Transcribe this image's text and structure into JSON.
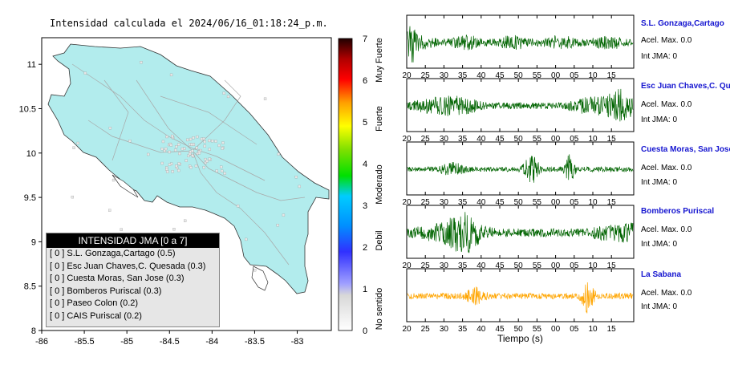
{
  "map": {
    "title": "Intensidad calculada el 2024/06/16_01:18:24_p.m.",
    "xticks": [
      "-86",
      "-85.5",
      "-85",
      "-84.5",
      "-84",
      "-83.5",
      "-83"
    ],
    "yticks": [
      "11",
      "10.5",
      "10",
      "9.5",
      "9",
      "8.5",
      "8"
    ],
    "xlim": [
      -86,
      -82.6
    ],
    "ylim": [
      8,
      11.3
    ],
    "land_color": "#b2eced",
    "sea_color": "#ffffff"
  },
  "colorbar": {
    "ticks": [
      "0",
      "1",
      "2",
      "3",
      "4",
      "5",
      "6",
      "7"
    ],
    "labels": [
      "No sentido",
      "Debil",
      "Moderado",
      "Fuerte",
      "Muy Fuerte"
    ]
  },
  "legend": {
    "title": "INTENSIDAD JMA [0 a 7]",
    "items": [
      {
        "text": "[ 0 ]  S.L. Gonzaga,Cartago (0.5)"
      },
      {
        "text": "[ 0 ]  Esc Juan Chaves,C. Quesada (0.3)"
      },
      {
        "text": "[ 0 ]  Cuesta Moras, San Jose (0.3)"
      },
      {
        "text": "[ 0 ]  Bomberos Puriscal (0.3)"
      },
      {
        "text": "[ 0 ]  Paseo Colon (0.2)"
      },
      {
        "text": "[ 0 ]  CAIS Puriscal (0.2)"
      }
    ]
  },
  "chart_data": {
    "type": "line",
    "xlabel": "Tiempo (s)",
    "ticks": [
      "20",
      "25",
      "30",
      "35",
      "40",
      "45",
      "50",
      "55",
      "00",
      "05",
      "10",
      "15"
    ],
    "stations": [
      {
        "name": "S.L. Gonzaga,Cartago",
        "acel": "Acel. Max. 0.0",
        "jma": "Int JMA: 0",
        "color": "#006400"
      },
      {
        "name": "Esc Juan Chaves,C. Quesada",
        "acel": "Acel. Max. 0.0",
        "jma": "Int JMA: 0",
        "color": "#006400"
      },
      {
        "name": "Cuesta Moras, San Jose",
        "acel": "Acel. Max. 0.0",
        "jma": "Int JMA: 0",
        "color": "#006400"
      },
      {
        "name": "Bomberos Puriscal",
        "acel": "Acel. Max. 0.0",
        "jma": "Int JMA: 0",
        "color": "#006400"
      },
      {
        "name": "La Sabana",
        "acel": "Acel. Max. 0.0",
        "jma": "Int JMA: 0",
        "color": "#ffa500"
      }
    ]
  }
}
